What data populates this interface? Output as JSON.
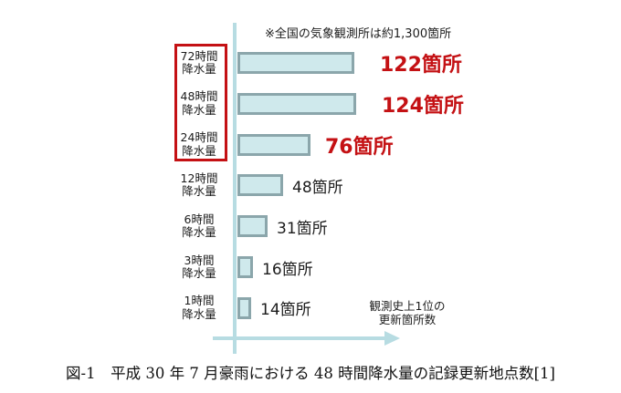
{
  "annotation": {
    "text": "※全国の気象観測所は約1,300箇所"
  },
  "axis_label": {
    "line1": "観測史上1位の",
    "line2": "更新箇所数"
  },
  "caption": {
    "text": "図-1　平成 30 年 7 月豪雨における 48 時間降水量の記録更新地点数[1]"
  },
  "colors": {
    "bar_fill": "#cfe9ec",
    "bar_border": "#8ba6ab",
    "axis": "#b7dce2",
    "highlight_red": "#c41114",
    "text_black": "#1c1c1c"
  },
  "chart_data": {
    "type": "bar",
    "orientation": "horizontal",
    "title": "",
    "xlabel": "観測史上1位の更新箇所数",
    "ylabel": "",
    "categories": [
      "72時間降水量",
      "48時間降水量",
      "24時間降水量",
      "12時間降水量",
      "6時間降水量",
      "3時間降水量",
      "1時間降水量"
    ],
    "category_lines": [
      [
        "72時間",
        "降水量"
      ],
      [
        "48時間",
        "降水量"
      ],
      [
        "24時間",
        "降水量"
      ],
      [
        "12時間",
        "降水量"
      ],
      [
        "6時間",
        "降水量"
      ],
      [
        "3時間",
        "降水量"
      ],
      [
        "1時間",
        "降水量"
      ]
    ],
    "values": [
      122,
      124,
      76,
      48,
      31,
      16,
      14
    ],
    "value_labels": [
      "122箇所",
      "124箇所",
      "76箇所",
      "48箇所",
      "31箇所",
      "16箇所",
      "14箇所"
    ],
    "highlighted": [
      true,
      true,
      true,
      false,
      false,
      false,
      false
    ],
    "highlight_note": "top three categories outlined with red box, values in red bold",
    "xlim": [
      0,
      130
    ],
    "grid": false,
    "legend": null
  }
}
